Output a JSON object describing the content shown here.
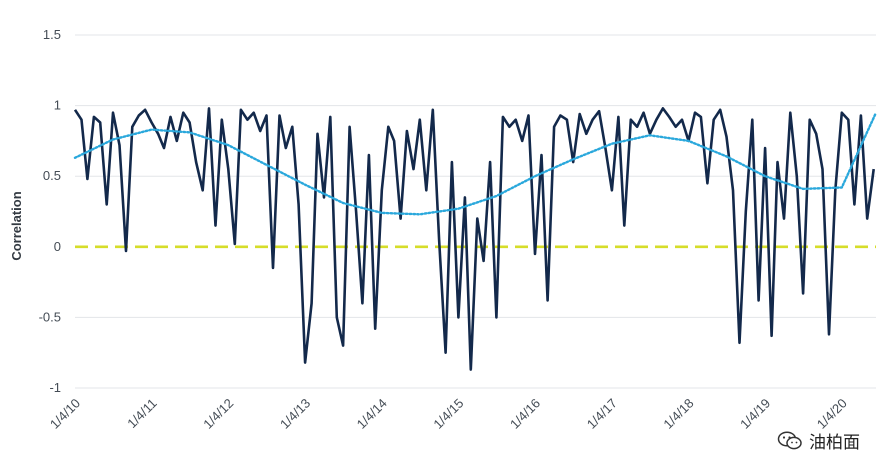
{
  "chart_data": {
    "type": "line",
    "title": "",
    "xlabel": "",
    "ylabel": "Correlation",
    "ylim": [
      -1,
      1.5
    ],
    "yticks": [
      1.5,
      1,
      0.5,
      0,
      -0.5,
      -1
    ],
    "ytick_labels": [
      "1.5",
      "1",
      "0.5",
      "0",
      "-0.5",
      "-1"
    ],
    "xlim": [
      "2010-01-04",
      "2020-06-15"
    ],
    "xticks": [
      "2010-01-04",
      "2011-01-04",
      "2012-01-04",
      "2013-01-04",
      "2014-01-04",
      "2015-01-04",
      "2016-01-04",
      "2017-01-04",
      "2018-01-04",
      "2019-01-04",
      "2020-01-04"
    ],
    "xtick_labels": [
      "1/4/10",
      "1/4/11",
      "1/4/12",
      "1/4/13",
      "1/4/14",
      "1/4/15",
      "1/4/16",
      "1/4/17",
      "1/4/18",
      "1/4/19",
      "1/4/20"
    ],
    "grid": true,
    "colors": {
      "main": "#13294b",
      "trend": "#2aa8dc",
      "zero": "#d6dd2a",
      "grid": "#e3e5e8"
    },
    "series": [
      {
        "style": "solid",
        "color": "#13294b",
        "x": [
          "2010-01-04",
          "2010-02-04",
          "2010-03-04",
          "2010-04-04",
          "2010-05-04",
          "2010-06-04",
          "2010-07-04",
          "2010-08-04",
          "2010-09-04",
          "2010-10-04",
          "2010-11-04",
          "2010-12-04",
          "2011-01-04",
          "2011-02-04",
          "2011-03-04",
          "2011-04-04",
          "2011-05-04",
          "2011-06-04",
          "2011-07-04",
          "2011-08-04",
          "2011-09-04",
          "2011-10-04",
          "2011-11-04",
          "2011-12-04",
          "2012-01-04",
          "2012-02-04",
          "2012-03-04",
          "2012-04-04",
          "2012-05-04",
          "2012-06-04",
          "2012-07-04",
          "2012-08-04",
          "2012-09-04",
          "2012-10-04",
          "2012-11-04",
          "2012-12-04",
          "2013-01-04",
          "2013-02-04",
          "2013-03-04",
          "2013-04-04",
          "2013-05-04",
          "2013-06-04",
          "2013-07-04",
          "2013-08-04",
          "2013-09-04",
          "2013-10-04",
          "2013-11-04",
          "2013-12-04",
          "2014-01-04",
          "2014-02-04",
          "2014-03-04",
          "2014-04-04",
          "2014-05-04",
          "2014-06-04",
          "2014-07-04",
          "2014-08-04",
          "2014-09-04",
          "2014-10-04",
          "2014-11-04",
          "2014-12-04",
          "2015-01-04",
          "2015-02-04",
          "2015-03-04",
          "2015-04-04",
          "2015-05-04",
          "2015-06-04",
          "2015-07-04",
          "2015-08-04",
          "2015-09-04",
          "2015-10-04",
          "2015-11-04",
          "2015-12-04",
          "2016-01-04",
          "2016-02-04",
          "2016-03-04",
          "2016-04-04",
          "2016-05-04",
          "2016-06-04",
          "2016-07-04",
          "2016-08-04",
          "2016-09-04",
          "2016-10-04",
          "2016-11-04",
          "2016-12-04",
          "2017-01-04",
          "2017-02-04",
          "2017-03-04",
          "2017-04-04",
          "2017-05-04",
          "2017-06-04",
          "2017-07-04",
          "2017-08-04",
          "2017-09-04",
          "2017-10-04",
          "2017-11-04",
          "2017-12-04",
          "2018-01-04",
          "2018-02-04",
          "2018-03-04",
          "2018-04-04",
          "2018-05-04",
          "2018-06-04",
          "2018-07-04",
          "2018-08-04",
          "2018-09-04",
          "2018-10-04",
          "2018-11-04",
          "2018-12-04",
          "2019-01-04",
          "2019-02-04",
          "2019-03-04",
          "2019-04-04",
          "2019-05-04",
          "2019-06-04",
          "2019-07-04",
          "2019-08-04",
          "2019-09-04",
          "2019-10-04",
          "2019-11-04",
          "2019-12-04",
          "2020-01-04",
          "2020-02-04",
          "2020-03-04",
          "2020-04-04",
          "2020-05-04",
          "2020-06-04"
        ],
        "values": [
          0.97,
          0.9,
          0.48,
          0.92,
          0.88,
          0.3,
          0.95,
          0.72,
          -0.03,
          0.85,
          0.93,
          0.97,
          0.88,
          0.8,
          0.7,
          0.92,
          0.75,
          0.95,
          0.88,
          0.6,
          0.4,
          0.98,
          0.15,
          0.9,
          0.55,
          0.02,
          0.97,
          0.9,
          0.95,
          0.82,
          0.93,
          -0.15,
          0.93,
          0.7,
          0.85,
          0.3,
          -0.82,
          -0.4,
          0.8,
          0.35,
          0.92,
          -0.5,
          -0.7,
          0.85,
          0.25,
          -0.4,
          0.65,
          -0.58,
          0.4,
          0.85,
          0.75,
          0.2,
          0.82,
          0.55,
          0.9,
          0.4,
          0.97,
          0.05,
          -0.75,
          0.6,
          -0.5,
          0.35,
          -0.87,
          0.2,
          -0.1,
          0.6,
          -0.5,
          0.92,
          0.85,
          0.9,
          0.75,
          0.93,
          -0.05,
          0.65,
          -0.38,
          0.85,
          0.93,
          0.9,
          0.6,
          0.94,
          0.8,
          0.9,
          0.96,
          0.7,
          0.4,
          0.92,
          0.15,
          0.9,
          0.85,
          0.95,
          0.8,
          0.9,
          0.98,
          0.92,
          0.85,
          0.9,
          0.75,
          0.95,
          0.92,
          0.45,
          0.9,
          0.97,
          0.78,
          0.4,
          -0.68,
          0.25,
          0.9,
          -0.38,
          0.7,
          -0.63,
          0.6,
          0.2,
          0.95,
          0.5,
          -0.33,
          0.9,
          0.8,
          0.55,
          -0.62,
          0.4,
          0.95,
          0.9,
          0.3,
          0.93,
          0.2,
          0.55
        ]
      },
      {
        "style": "dotted",
        "color": "#2aa8dc",
        "x": [
          "2010-01-04",
          "2010-07-04",
          "2011-01-04",
          "2011-07-04",
          "2012-01-04",
          "2012-07-04",
          "2013-01-04",
          "2013-07-04",
          "2014-01-04",
          "2014-07-04",
          "2015-01-04",
          "2015-07-04",
          "2016-01-04",
          "2016-07-04",
          "2017-01-04",
          "2017-07-04",
          "2018-01-04",
          "2018-07-04",
          "2019-01-04",
          "2019-07-04",
          "2020-01-04",
          "2020-06-15"
        ],
        "values": [
          0.63,
          0.76,
          0.83,
          0.81,
          0.72,
          0.58,
          0.44,
          0.31,
          0.24,
          0.23,
          0.27,
          0.36,
          0.5,
          0.62,
          0.73,
          0.79,
          0.75,
          0.64,
          0.5,
          0.41,
          0.42,
          0.95
        ]
      },
      {
        "style": "dashed",
        "color": "#d6dd2a",
        "x": [
          "2010-01-04",
          "2020-06-15"
        ],
        "values": [
          0,
          0
        ]
      }
    ]
  },
  "watermark": {
    "text": "油柏面"
  }
}
